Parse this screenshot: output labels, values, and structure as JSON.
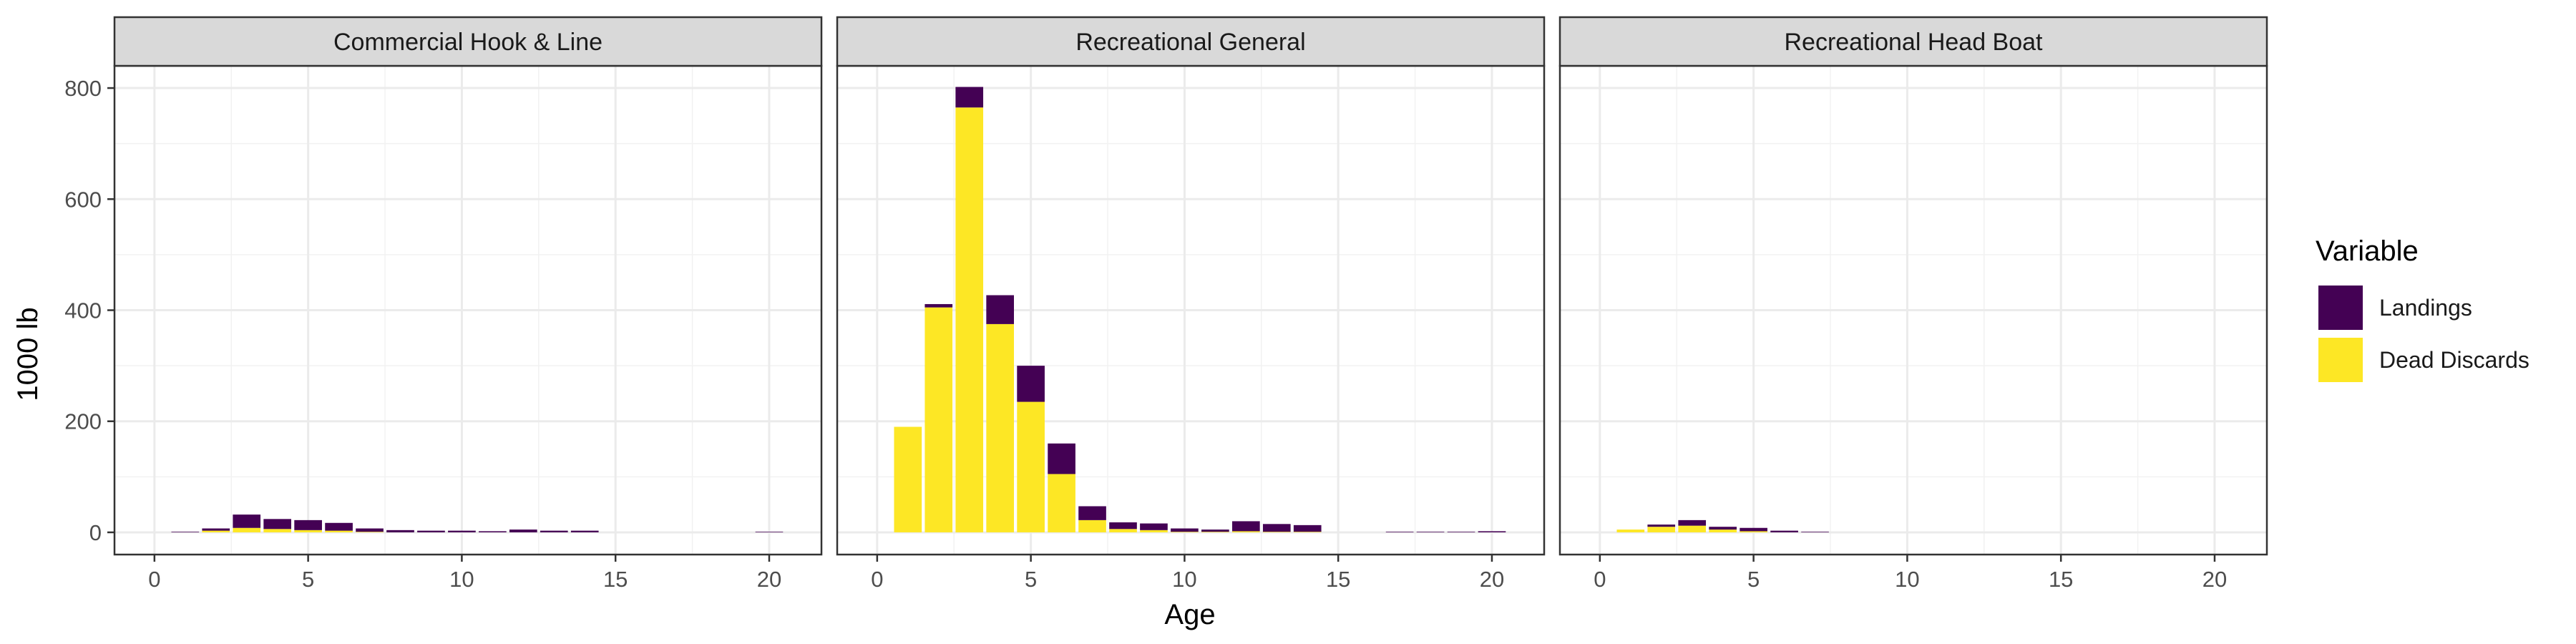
{
  "chart_data": {
    "type": "bar",
    "stacked": true,
    "xlabel": "Age",
    "ylabel": "1000 lb",
    "xlim": [
      -1.3,
      21.7
    ],
    "ylim": [
      -40,
      840
    ],
    "x_ticks": [
      0,
      5,
      10,
      15,
      20
    ],
    "y_ticks": [
      0,
      200,
      400,
      600,
      800
    ],
    "grid": true,
    "legend_position": "right",
    "legend": {
      "title": "Variable",
      "items": [
        {
          "label": "Landings",
          "color": "#440154"
        },
        {
          "label": "Dead Discards",
          "color": "#FDE725"
        }
      ]
    },
    "facets": [
      {
        "title": "Commercial Hook & Line",
        "bars": [
          {
            "age": 1,
            "dead_discards": 0,
            "landings": 1
          },
          {
            "age": 2,
            "dead_discards": 3,
            "landings": 4
          },
          {
            "age": 3,
            "dead_discards": 8,
            "landings": 24
          },
          {
            "age": 4,
            "dead_discards": 6,
            "landings": 18
          },
          {
            "age": 5,
            "dead_discards": 4,
            "landings": 18
          },
          {
            "age": 6,
            "dead_discards": 3,
            "landings": 14
          },
          {
            "age": 7,
            "dead_discards": 1,
            "landings": 6
          },
          {
            "age": 8,
            "dead_discards": 0,
            "landings": 4
          },
          {
            "age": 9,
            "dead_discards": 0,
            "landings": 3
          },
          {
            "age": 10,
            "dead_discards": 0,
            "landings": 3
          },
          {
            "age": 11,
            "dead_discards": 0,
            "landings": 2
          },
          {
            "age": 12,
            "dead_discards": 0,
            "landings": 5
          },
          {
            "age": 13,
            "dead_discards": 0,
            "landings": 3
          },
          {
            "age": 14,
            "dead_discards": 0,
            "landings": 3
          },
          {
            "age": 20,
            "dead_discards": 0,
            "landings": 1
          }
        ]
      },
      {
        "title": "Recreational General",
        "bars": [
          {
            "age": 1,
            "dead_discards": 190,
            "landings": 0
          },
          {
            "age": 2,
            "dead_discards": 405,
            "landings": 6
          },
          {
            "age": 3,
            "dead_discards": 765,
            "landings": 37
          },
          {
            "age": 4,
            "dead_discards": 375,
            "landings": 52
          },
          {
            "age": 5,
            "dead_discards": 235,
            "landings": 65
          },
          {
            "age": 6,
            "dead_discards": 105,
            "landings": 55
          },
          {
            "age": 7,
            "dead_discards": 22,
            "landings": 25
          },
          {
            "age": 8,
            "dead_discards": 6,
            "landings": 12
          },
          {
            "age": 9,
            "dead_discards": 4,
            "landings": 12
          },
          {
            "age": 10,
            "dead_discards": 1,
            "landings": 6
          },
          {
            "age": 11,
            "dead_discards": 1,
            "landings": 4
          },
          {
            "age": 12,
            "dead_discards": 2,
            "landings": 18
          },
          {
            "age": 13,
            "dead_discards": 1,
            "landings": 14
          },
          {
            "age": 14,
            "dead_discards": 1,
            "landings": 12
          },
          {
            "age": 17,
            "dead_discards": 0,
            "landings": 1
          },
          {
            "age": 18,
            "dead_discards": 0,
            "landings": 1
          },
          {
            "age": 19,
            "dead_discards": 0,
            "landings": 1
          },
          {
            "age": 20,
            "dead_discards": 0,
            "landings": 2
          }
        ]
      },
      {
        "title": "Recreational Head Boat",
        "bars": [
          {
            "age": 1,
            "dead_discards": 5,
            "landings": 0
          },
          {
            "age": 2,
            "dead_discards": 10,
            "landings": 4
          },
          {
            "age": 3,
            "dead_discards": 12,
            "landings": 10
          },
          {
            "age": 4,
            "dead_discards": 5,
            "landings": 5
          },
          {
            "age": 5,
            "dead_discards": 2,
            "landings": 6
          },
          {
            "age": 6,
            "dead_discards": 0,
            "landings": 3
          },
          {
            "age": 7,
            "dead_discards": 0,
            "landings": 1
          }
        ]
      }
    ]
  }
}
